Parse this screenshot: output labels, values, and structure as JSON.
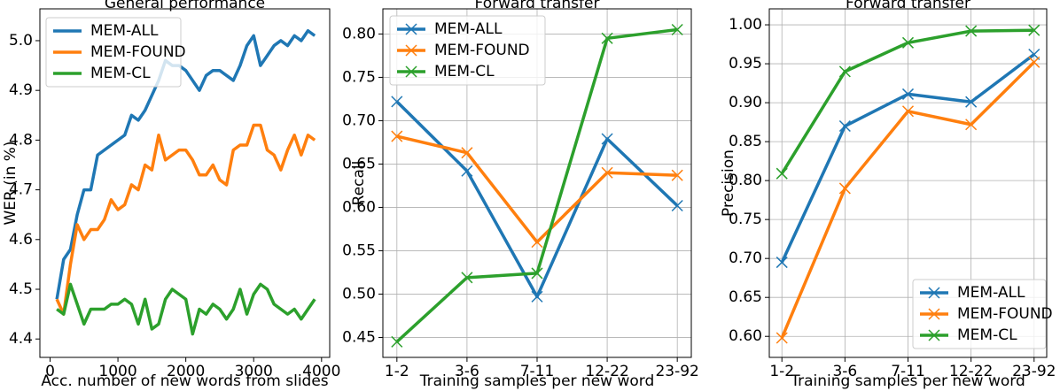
{
  "chart_data": [
    {
      "type": "line",
      "title": "General performance",
      "xlabel": "Acc. number of new words from slides",
      "ylabel": "WER (in %)",
      "x": [
        100,
        200,
        300,
        400,
        500,
        600,
        700,
        800,
        900,
        1000,
        1100,
        1200,
        1300,
        1400,
        1500,
        1600,
        1700,
        1800,
        1900,
        2000,
        2100,
        2200,
        2300,
        2400,
        2500,
        2600,
        2700,
        2800,
        2900,
        3000,
        3100,
        3200,
        3300,
        3400,
        3500,
        3600,
        3700,
        3800,
        3900
      ],
      "series": [
        {
          "name": "MEM-ALL",
          "color": "#1f77b4",
          "values": [
            4.48,
            4.56,
            4.58,
            4.65,
            4.7,
            4.7,
            4.77,
            4.78,
            4.79,
            4.8,
            4.81,
            4.85,
            4.84,
            4.86,
            4.89,
            4.92,
            4.96,
            4.95,
            4.95,
            4.94,
            4.92,
            4.9,
            4.93,
            4.94,
            4.94,
            4.93,
            4.92,
            4.95,
            4.99,
            5.01,
            4.95,
            4.97,
            4.99,
            5.0,
            4.99,
            5.01,
            5.0,
            5.02,
            5.01
          ]
        },
        {
          "name": "MEM-FOUND",
          "color": "#ff7f0e",
          "values": [
            4.48,
            4.45,
            4.55,
            4.63,
            4.6,
            4.62,
            4.62,
            4.64,
            4.68,
            4.66,
            4.67,
            4.71,
            4.7,
            4.75,
            4.74,
            4.81,
            4.76,
            4.77,
            4.78,
            4.78,
            4.76,
            4.73,
            4.73,
            4.75,
            4.72,
            4.71,
            4.78,
            4.79,
            4.79,
            4.83,
            4.83,
            4.78,
            4.77,
            4.74,
            4.78,
            4.81,
            4.77,
            4.81,
            4.8
          ]
        },
        {
          "name": "MEM-CL",
          "color": "#2ca02c",
          "values": [
            4.46,
            4.45,
            4.51,
            4.47,
            4.43,
            4.46,
            4.46,
            4.46,
            4.47,
            4.47,
            4.48,
            4.47,
            4.43,
            4.48,
            4.42,
            4.43,
            4.48,
            4.5,
            4.49,
            4.48,
            4.41,
            4.46,
            4.45,
            4.47,
            4.46,
            4.44,
            4.46,
            4.5,
            4.45,
            4.49,
            4.51,
            4.5,
            4.47,
            4.46,
            4.45,
            4.46,
            4.44,
            4.46,
            4.48
          ]
        }
      ],
      "xlim": [
        -150,
        4120
      ],
      "xticks": [
        0,
        1000,
        2000,
        3000,
        4000
      ],
      "ylim": [
        4.363,
        5.064
      ],
      "yticks": [
        4.4,
        4.5,
        4.6,
        4.7,
        4.8,
        4.9,
        {
          "value": 5,
          "label": "5.0"
        }
      ],
      "grid": false,
      "legend": "upper left"
    },
    {
      "type": "line",
      "title": "Forward transfer",
      "xlabel": "Training samples per new word",
      "ylabel": "Recall",
      "categories": [
        "1-2",
        "3-6",
        "7-11",
        "12-22",
        "23-92"
      ],
      "marker": "x",
      "series": [
        {
          "name": "MEM-ALL",
          "color": "#1f77b4",
          "values": [
            0.722,
            0.642,
            0.497,
            0.679,
            0.602
          ]
        },
        {
          "name": "MEM-FOUND",
          "color": "#ff7f0e",
          "values": [
            0.682,
            0.663,
            0.56,
            0.64,
            0.637
          ]
        },
        {
          "name": "MEM-CL",
          "color": "#2ca02c",
          "values": [
            0.445,
            0.519,
            0.524,
            0.795,
            0.805
          ]
        }
      ],
      "ylim": [
        0.427,
        0.829
      ],
      "yticks": [
        0.45,
        {
          "value": 0.5,
          "label": "0.50"
        },
        0.55,
        {
          "value": 0.6,
          "label": "0.60"
        },
        0.65,
        {
          "value": 0.7,
          "label": "0.70"
        },
        0.75,
        {
          "value": 0.8,
          "label": "0.80"
        }
      ],
      "grid": true,
      "legend": "upper left"
    },
    {
      "type": "line",
      "title": "Forward transfer",
      "xlabel": "Training samples per new word",
      "ylabel": "Precision",
      "categories": [
        "1-2",
        "3-6",
        "7-11",
        "12-22",
        "23-92"
      ],
      "marker": "x",
      "series": [
        {
          "name": "MEM-ALL",
          "color": "#1f77b4",
          "values": [
            0.695,
            0.87,
            0.911,
            0.901,
            0.962
          ]
        },
        {
          "name": "MEM-FOUND",
          "color": "#ff7f0e",
          "values": [
            0.598,
            0.79,
            0.889,
            0.872,
            0.952
          ]
        },
        {
          "name": "MEM-CL",
          "color": "#2ca02c",
          "values": [
            0.809,
            0.94,
            0.977,
            0.992,
            0.993
          ]
        }
      ],
      "ylim": [
        0.573,
        1.0205
      ],
      "yticks": [
        {
          "value": 0.6,
          "label": "0.60"
        },
        0.65,
        {
          "value": 0.7,
          "label": "0.70"
        },
        0.75,
        {
          "value": 0.8,
          "label": "0.80"
        },
        0.85,
        {
          "value": 0.9,
          "label": "0.90"
        },
        0.95,
        {
          "value": 1,
          "label": "1.00"
        }
      ],
      "grid": true,
      "legend": "lower right"
    }
  ]
}
